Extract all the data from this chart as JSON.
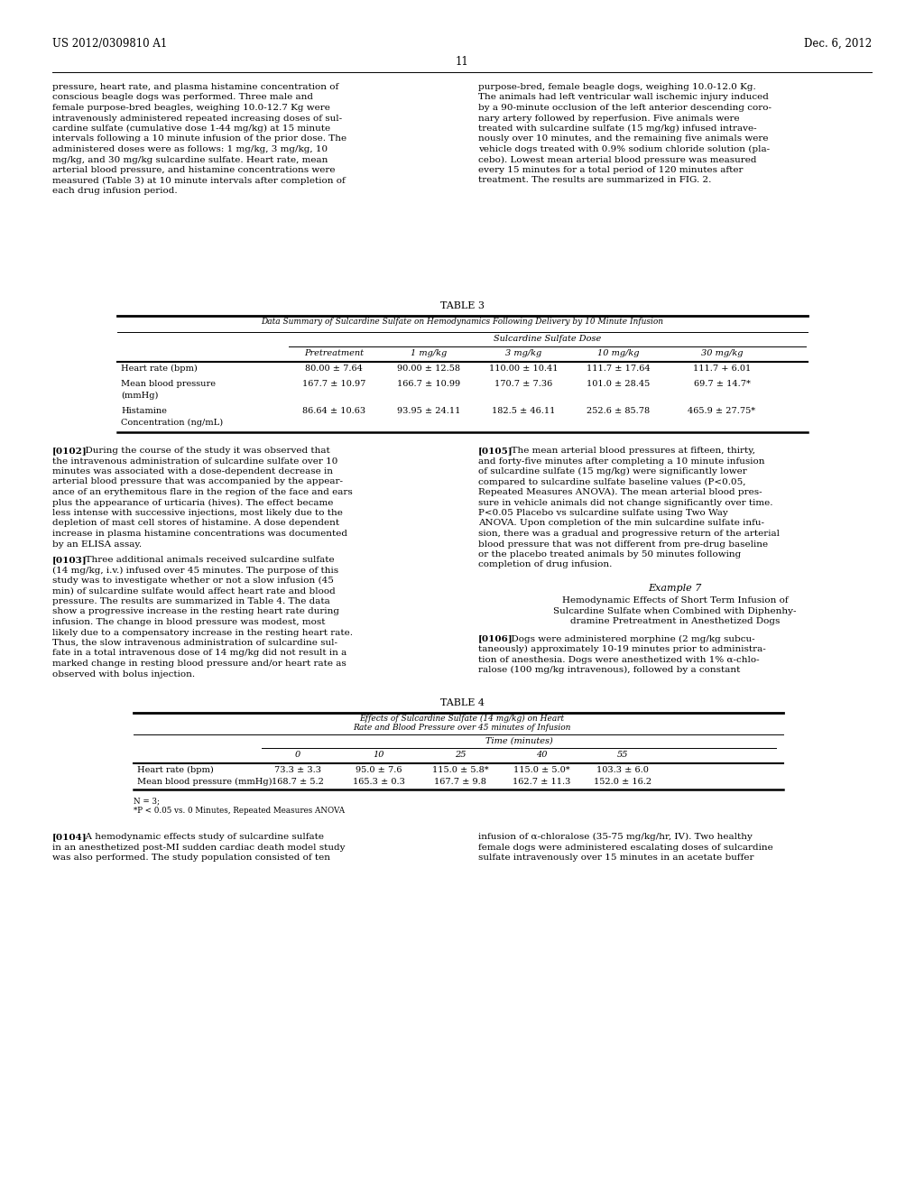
{
  "page_header_left": "US 2012/0309810 A1",
  "page_header_right": "Dec. 6, 2012",
  "page_number": "11",
  "background_color": "#ffffff",
  "table3_title": "TABLE 3",
  "table3_subtitle": "Data Summary of Sulcardine Sulfate on Hemodynamics Following Delivery by 10 Minute Infusion",
  "table3_dose_header": "Sulcardine Sulfate Dose",
  "table3_col_headers": [
    "Pretreatment",
    "1 mg/kg",
    "3 mg/kg",
    "10 mg/kg",
    "30 mg/kg"
  ],
  "table3_rows": [
    [
      "Heart rate (bpm)",
      "80.00 ± 7.64",
      "90.00 ± 12.58",
      "110.00 ± 10.41",
      "111.7 ± 17.64",
      "111.7 + 6.01"
    ],
    [
      "Mean blood pressure\n(mmHg)",
      "167.7 ± 10.97",
      "166.7 ± 10.99",
      "170.7 ± 7.36",
      "101.0 ± 28.45",
      "69.7 ± 14.7*"
    ],
    [
      "Histamine\nConcentration (ng/mL)",
      "86.64 ± 10.63",
      "93.95 ± 24.11",
      "182.5 ± 46.11",
      "252.6 ± 85.78",
      "465.9 ± 27.75*"
    ]
  ],
  "table4_title": "TABLE 4",
  "table4_subtitle1": "Effects of Sulcardine Sulfate (14 mg/kg) on Heart",
  "table4_subtitle2": "Rate and Blood Pressure over 45 minutes of Infusion",
  "table4_time_header": "Time (minutes)",
  "table4_col_headers": [
    "0",
    "10",
    "25",
    "40",
    "55"
  ],
  "table4_rows": [
    [
      "Heart rate (bpm)",
      "73.3 ± 3.3",
      "95.0 ± 7.6",
      "115.0 ± 5.8*",
      "115.0 ± 5.0*",
      "103.3 ± 6.0"
    ],
    [
      "Mean blood pressure (mmHg)",
      "168.7 ± 5.2",
      "165.3 ± 0.3",
      "167.7 ± 9.8",
      "162.7 ± 11.3",
      "152.0 ± 16.2"
    ]
  ],
  "table4_footnotes": [
    "N = 3;",
    "*P < 0.05 vs. 0 Minutes, Repeated Measures ANOVA"
  ],
  "para_left1": "pressure, heart rate, and plasma histamine concentration of\nconscious beagle dogs was performed. Three male and\nfemale purpose-bred beagles, weighing 10.0-12.7 Kg were\nintravenously administered repeated increasing doses of sul-\ncardine sulfate (cumulative dose 1-44 mg/kg) at 15 minute\nintervals following a 10 minute infusion of the prior dose. The\nadministered doses were as follows: 1 mg/kg, 3 mg/kg, 10\nmg/kg, and 30 mg/kg sulcardine sulfate. Heart rate, mean\narterial blood pressure, and histamine concentrations were\nmeasured (Table 3) at 10 minute intervals after completion of\neach drug infusion period.",
  "para_right1": "purpose-bred, female beagle dogs, weighing 10.0-12.0 Kg.\nThe animals had left ventricular wall ischemic injury induced\nby a 90-minute occlusion of the left anterior descending coro-\nnary artery followed by reperfusion. Five animals were\ntreated with sulcardine sulfate (15 mg/kg) infused intrave-\nnously over 10 minutes, and the remaining five animals were\nvehicle dogs treated with 0.9% sodium chloride solution (pla-\ncebo). Lowest mean arterial blood pressure was measured\nevery 15 minutes for a total period of 120 minutes after\ntreatment. The results are summarized in FIG. 2.",
  "para_left2_bold": "[0102]",
  "para_left2": "  During the course of the study it was observed that\nthe intravenous administration of sulcardine sulfate over 10\nminutes was associated with a dose-dependent decrease in\narterial blood pressure that was accompanied by the appear-\nance of an erythemitous flare in the region of the face and ears\nplus the appearance of urticaria (hives). The effect became\nless intense with successive injections, most likely due to the\ndepletion of mast cell stores of histamine. A dose dependent\nincrease in plasma histamine concentrations was documented\nby an ELISA assay.",
  "para_right2_bold": "[0105]",
  "para_right2": "  The mean arterial blood pressures at fifteen, thirty,\nand forty-five minutes after completing a 10 minute infusion\nof sulcardine sulfate (15 mg/kg) were significantly lower\ncompared to sulcardine sulfate baseline values (P<0.05,\nRepeated Measures ANOVA). The mean arterial blood pres-\nsure in vehicle animals did not change significantly over time.\nP<0.05 Placebo vs sulcardine sulfate using Two Way\nANOVA. Upon completion of the min sulcardine sulfate infu-\nsion, there was a gradual and progressive return of the arterial\nblood pressure that was not different from pre-drug baseline\nor the placebo treated animals by 50 minutes following\ncompletion of drug infusion.",
  "para_left3_bold": "[0103]",
  "para_left3": "  Three additional animals received sulcardine sulfate\n(14 mg/kg, i.v.) infused over 45 minutes. The purpose of this\nstudy was to investigate whether or not a slow infusion (45\nmin) of sulcardine sulfate would affect heart rate and blood\npressure. The results are summarized in Table 4. The data\nshow a progressive increase in the resting heart rate during\ninfusion. The change in blood pressure was modest, most\nlikely due to a compensatory increase in the resting heart rate.\nThus, the slow intravenous administration of sulcardine sul-\nfate in a total intravenous dose of 14 mg/kg did not result in a\nmarked change in resting blood pressure and/or heart rate as\nobserved with bolus injection.",
  "example7": "Example 7",
  "example7_sub": "Hemodynamic Effects of Short Term Infusion of\nSulcardine Sulfate when Combined with Diphenhy-\ndramine Pretreatment in Anesthetized Dogs",
  "para_right3_bold": "[0106]",
  "para_right3": "  Dogs were administered morphine (2 mg/kg subcu-\ntaneously) approximately 10-19 minutes prior to administra-\ntion of anesthesia. Dogs were anesthetized with 1% α-chlo-\nralose (100 mg/kg intravenous), followed by a constant",
  "para_left4_bold": "[0104]",
  "para_left4": "  A hemodynamic effects study of sulcardine sulfate\nin an anesthetized post-MI sudden cardiac death model study\nwas also performed. The study population consisted of ten",
  "para_right4": "infusion of α-chloralose (35-75 mg/kg/hr, IV). Two healthy\nfemale dogs were administered escalating doses of sulcardine\nsulfate intravenously over 15 minutes in an acetate buffer"
}
